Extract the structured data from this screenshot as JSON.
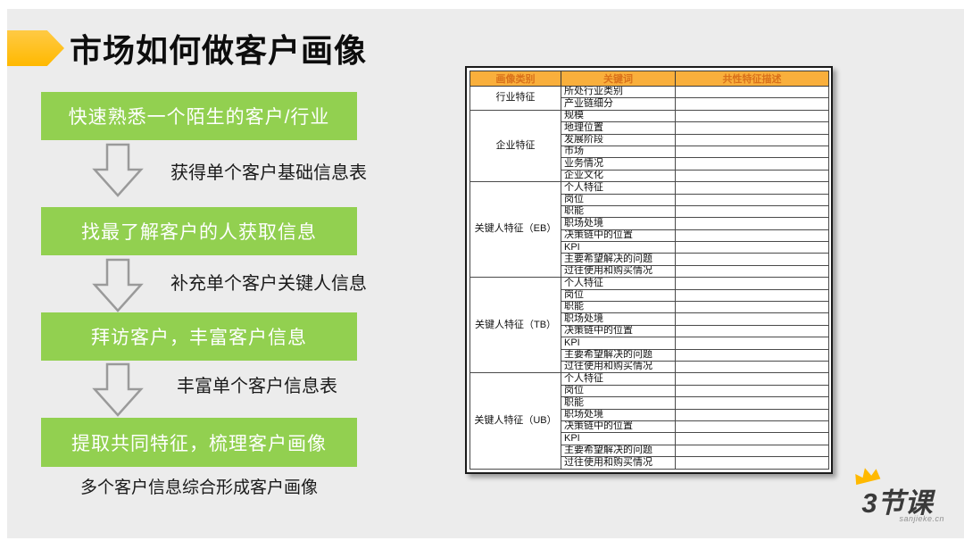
{
  "slide": {
    "title": "市场如何做客户画像"
  },
  "flow": {
    "steps": [
      {
        "label": "快速熟悉一个陌生的客户/行业",
        "note": "获得单个客户基础信息表"
      },
      {
        "label": "找最了解客户的人获取信息",
        "note": "补充单个客户关键人信息"
      },
      {
        "label": "拜访客户，丰富客户信息",
        "note": "丰富单个客户信息表"
      },
      {
        "label": "提取共同特征，梳理客户画像",
        "note": "多个客户信息综合形成客户画像"
      }
    ]
  },
  "table": {
    "headers": [
      "画像类别",
      "关键词",
      "共性特征描述"
    ],
    "groups": [
      {
        "category": "行业特征",
        "keywords": [
          "所处行业类别",
          "产业链细分"
        ]
      },
      {
        "category": "企业特征",
        "keywords": [
          "规模",
          "地理位置",
          "发展阶段",
          "市场",
          "业务情况",
          "企业文化"
        ]
      },
      {
        "category": "关键人特征（EB）",
        "keywords": [
          "个人特征",
          "岗位",
          "职能",
          "职场处境",
          "决策链中的位置",
          "KPI",
          "主要希望解决的问题",
          "过往使用和购买情况"
        ]
      },
      {
        "category": "关键人特征（TB）",
        "keywords": [
          "个人特征",
          "岗位",
          "职能",
          "职场处境",
          "决策链中的位置",
          "KPI",
          "主要希望解决的问题",
          "过往使用和购买情况"
        ]
      },
      {
        "category": "关键人特征（UB）",
        "keywords": [
          "个人特征",
          "岗位",
          "职能",
          "职场处境",
          "决策链中的位置",
          "KPI",
          "主要希望解决的问题",
          "过往使用和购买情况"
        ]
      }
    ],
    "description_cells": ""
  },
  "logo": {
    "text": "3节课",
    "subtext": "sanjieke.cn"
  },
  "colors": {
    "slide_background": "#ECECEC",
    "accent_green": "#92D050",
    "accent_yellow": "#FFB900",
    "table_header_fill": "#F9AF3C",
    "table_header_text": "#D9701A",
    "arrow_outline": "#9a9a9a"
  }
}
